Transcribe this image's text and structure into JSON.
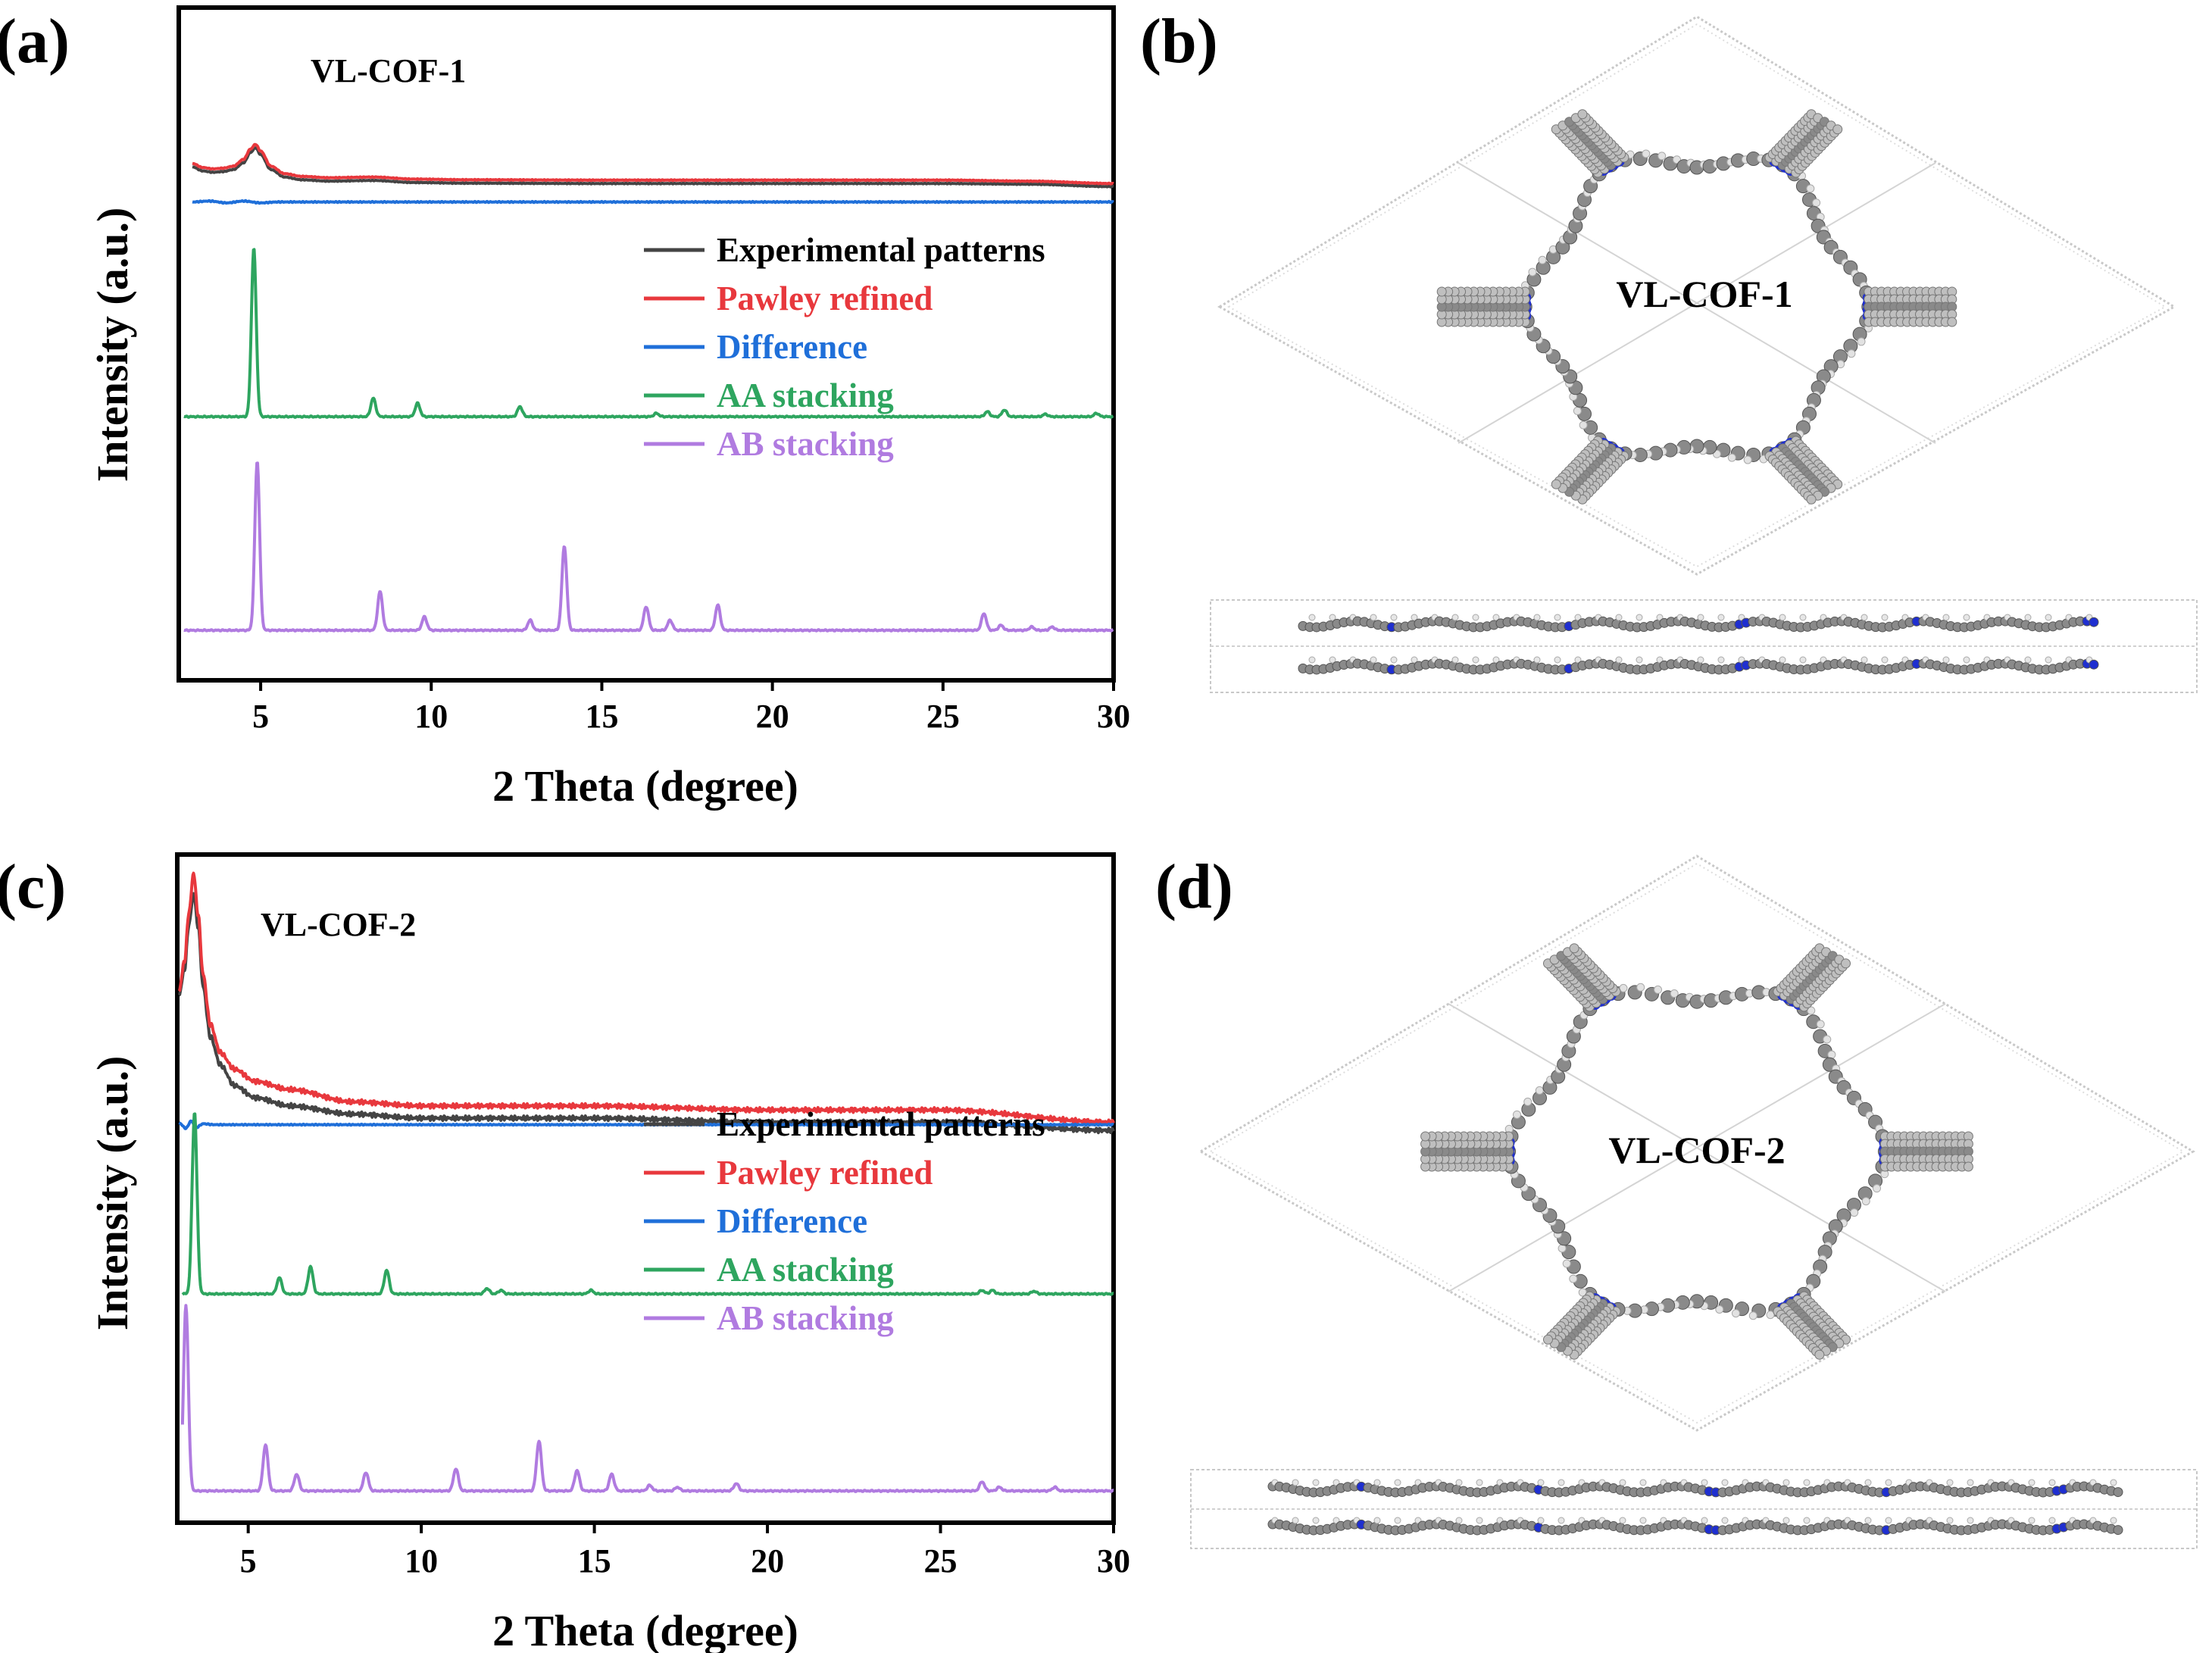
{
  "colors": {
    "experimental": "#444444",
    "pawley": "#e8383d",
    "difference": "#1f6fd9",
    "aa": "#2ea55f",
    "ab": "#b07be0",
    "bond": "#8a8a8a",
    "nitrogen": "#1f2fd0",
    "hydrogen": "#e2e2e2",
    "cell": "#bcbcbc"
  },
  "panel_labels": {
    "a": "(a)",
    "b": "(b)",
    "c": "(c)",
    "d": "(d)"
  },
  "structures": {
    "b": "VL-COF-1",
    "d": "VL-COF-2"
  },
  "chart_data": [
    {
      "type": "line",
      "title": "VL-COF-1",
      "xlabel": "2 Theta (degree)",
      "ylabel": "Intensity (a.u.)",
      "xlim": [
        2.6,
        30
      ],
      "xticks": [
        5,
        10,
        15,
        20,
        25,
        30
      ],
      "xtick_labels": [
        "5",
        "10",
        "15",
        "20",
        "25",
        "30"
      ],
      "legend": [
        "Experimental patterns",
        "Pawley refined",
        "Difference",
        "AA stacking",
        "AB stacking"
      ],
      "series": [
        {
          "name": "Experimental patterns",
          "key": "experimental",
          "x": [
            3.0,
            3.3,
            3.6,
            3.9,
            4.2,
            4.5,
            4.7,
            4.85,
            5.0,
            5.3,
            5.7,
            6.2,
            7.0,
            8.3,
            9.5,
            11,
            15,
            20,
            25,
            27.5,
            30
          ],
          "y": [
            0.72,
            0.66,
            0.64,
            0.65,
            0.68,
            0.78,
            0.93,
            1.0,
            0.9,
            0.68,
            0.57,
            0.53,
            0.51,
            0.52,
            0.49,
            0.48,
            0.475,
            0.475,
            0.475,
            0.465,
            0.43
          ]
        },
        {
          "name": "Pawley refined",
          "key": "pawley",
          "x": [
            3.0,
            3.3,
            3.6,
            3.9,
            4.2,
            4.5,
            4.7,
            4.85,
            5.0,
            5.3,
            5.7,
            6.2,
            7.0,
            8.3,
            9.5,
            11,
            15,
            20,
            25,
            27.5,
            30
          ],
          "y": [
            0.77,
            0.71,
            0.69,
            0.7,
            0.73,
            0.83,
            0.98,
            1.05,
            0.95,
            0.73,
            0.62,
            0.58,
            0.56,
            0.57,
            0.54,
            0.53,
            0.525,
            0.525,
            0.525,
            0.51,
            0.475
          ]
        },
        {
          "name": "Difference",
          "key": "difference",
          "x": [
            3.0,
            3.5,
            4.0,
            4.5,
            5.0,
            5.5,
            30
          ],
          "y": [
            0.32,
            0.33,
            0.31,
            0.33,
            0.31,
            0.32,
            0.32
          ]
        },
        {
          "name": "AA stacking",
          "key": "aa",
          "base": 0.0,
          "peaks": [
            [
              4.8,
              1.0
            ],
            [
              8.3,
              0.11
            ],
            [
              9.6,
              0.08
            ],
            [
              12.6,
              0.06
            ],
            [
              16.6,
              0.02
            ],
            [
              26.3,
              0.03
            ],
            [
              26.8,
              0.04
            ],
            [
              28.0,
              0.015
            ],
            [
              29.5,
              0.02
            ]
          ]
        },
        {
          "name": "AB stacking",
          "key": "ab",
          "base": 0.0,
          "peaks": [
            [
              4.9,
              1.0
            ],
            [
              8.5,
              0.23
            ],
            [
              9.8,
              0.08
            ],
            [
              12.9,
              0.06
            ],
            [
              13.9,
              0.5
            ],
            [
              16.3,
              0.14
            ],
            [
              17.0,
              0.06
            ],
            [
              18.4,
              0.15
            ],
            [
              26.2,
              0.1
            ],
            [
              26.7,
              0.03
            ],
            [
              27.6,
              0.02
            ],
            [
              28.2,
              0.02
            ]
          ]
        }
      ]
    },
    {
      "type": "line",
      "title": "VL-COF-2",
      "xlabel": "2 Theta (degree)",
      "ylabel": "Intensity (a.u.)",
      "xlim": [
        2.95,
        30
      ],
      "xticks": [
        5,
        10,
        15,
        20,
        25,
        30
      ],
      "xtick_labels": [
        "5",
        "10",
        "15",
        "20",
        "25",
        "30"
      ],
      "legend": [
        "Experimental patterns",
        "Pawley refined",
        "Difference",
        "AA stacking",
        "AB stacking"
      ],
      "series": [
        {
          "name": "Experimental patterns",
          "key": "experimental",
          "x": [
            3.0,
            3.15,
            3.3,
            3.42,
            3.55,
            3.7,
            3.9,
            4.2,
            4.6,
            5.2,
            6.2,
            8,
            10,
            15,
            20,
            25,
            30
          ],
          "y": [
            0.7,
            0.76,
            0.88,
            0.95,
            0.87,
            0.72,
            0.6,
            0.53,
            0.48,
            0.45,
            0.43,
            0.41,
            0.4,
            0.4,
            0.39,
            0.39,
            0.37
          ]
        },
        {
          "name": "Pawley refined",
          "key": "pawley",
          "x": [
            3.0,
            3.15,
            3.3,
            3.42,
            3.55,
            3.7,
            3.9,
            4.2,
            4.6,
            5.2,
            6.2,
            8,
            10,
            15,
            20,
            25,
            30
          ],
          "y": [
            0.71,
            0.78,
            0.91,
            1.0,
            0.9,
            0.75,
            0.63,
            0.56,
            0.52,
            0.49,
            0.47,
            0.44,
            0.43,
            0.43,
            0.42,
            0.42,
            0.39
          ]
        },
        {
          "name": "Difference",
          "key": "difference",
          "x": [
            3.0,
            3.2,
            3.35,
            3.5,
            3.7,
            4.0,
            30
          ],
          "y": [
            0.19,
            0.13,
            0.21,
            0.14,
            0.18,
            0.17,
            0.17
          ]
        },
        {
          "name": "AA stacking",
          "key": "aa",
          "base": 0.0,
          "peaks": [
            [
              3.45,
              1.0
            ],
            [
              5.9,
              0.09
            ],
            [
              6.8,
              0.15
            ],
            [
              9.0,
              0.13
            ],
            [
              11.9,
              0.03
            ],
            [
              12.3,
              0.02
            ],
            [
              14.9,
              0.02
            ],
            [
              26.2,
              0.02
            ],
            [
              26.5,
              0.02
            ],
            [
              27.7,
              0.015
            ]
          ]
        },
        {
          "name": "AB stacking",
          "key": "ab",
          "base": 0.0,
          "peaks": [
            [
              3.2,
              1.0
            ],
            [
              5.5,
              0.25
            ],
            [
              6.4,
              0.09
            ],
            [
              8.4,
              0.1
            ],
            [
              11.0,
              0.12
            ],
            [
              13.4,
              0.27
            ],
            [
              14.5,
              0.11
            ],
            [
              15.5,
              0.09
            ],
            [
              16.6,
              0.03
            ],
            [
              17.4,
              0.02
            ],
            [
              19.1,
              0.04
            ],
            [
              26.2,
              0.05
            ],
            [
              26.7,
              0.02
            ],
            [
              28.3,
              0.02
            ]
          ]
        }
      ]
    }
  ]
}
